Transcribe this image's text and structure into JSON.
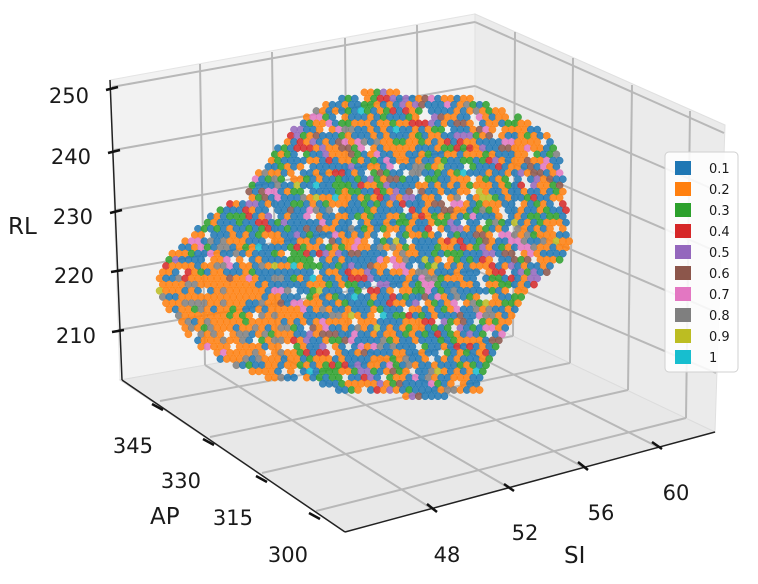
{
  "chart_data": {
    "type": "scatter",
    "projection": "3d",
    "title": "",
    "axes": {
      "x": {
        "label": "SI",
        "ticks": [
          "48",
          "52",
          "56",
          "60"
        ]
      },
      "y": {
        "label": "AP",
        "ticks": [
          "300",
          "315",
          "330",
          "345"
        ]
      },
      "z": {
        "label": "RL",
        "ticks": [
          "210",
          "220",
          "230",
          "240",
          "250"
        ]
      }
    },
    "grid": true,
    "legend_position": "right",
    "legend": [
      {
        "label": "0.1",
        "color": "#1f77b4"
      },
      {
        "label": "0.2",
        "color": "#ff7f0e"
      },
      {
        "label": "0.3",
        "color": "#2ca02c"
      },
      {
        "label": "0.4",
        "color": "#d62728"
      },
      {
        "label": "0.5",
        "color": "#9467bd"
      },
      {
        "label": "0.6",
        "color": "#8c564b"
      },
      {
        "label": "0.7",
        "color": "#e377c2"
      },
      {
        "label": "0.8",
        "color": "#7f7f7f"
      },
      {
        "label": "0.9",
        "color": "#bcbd22"
      },
      {
        "label": "1",
        "color": "#17becf"
      }
    ]
  }
}
